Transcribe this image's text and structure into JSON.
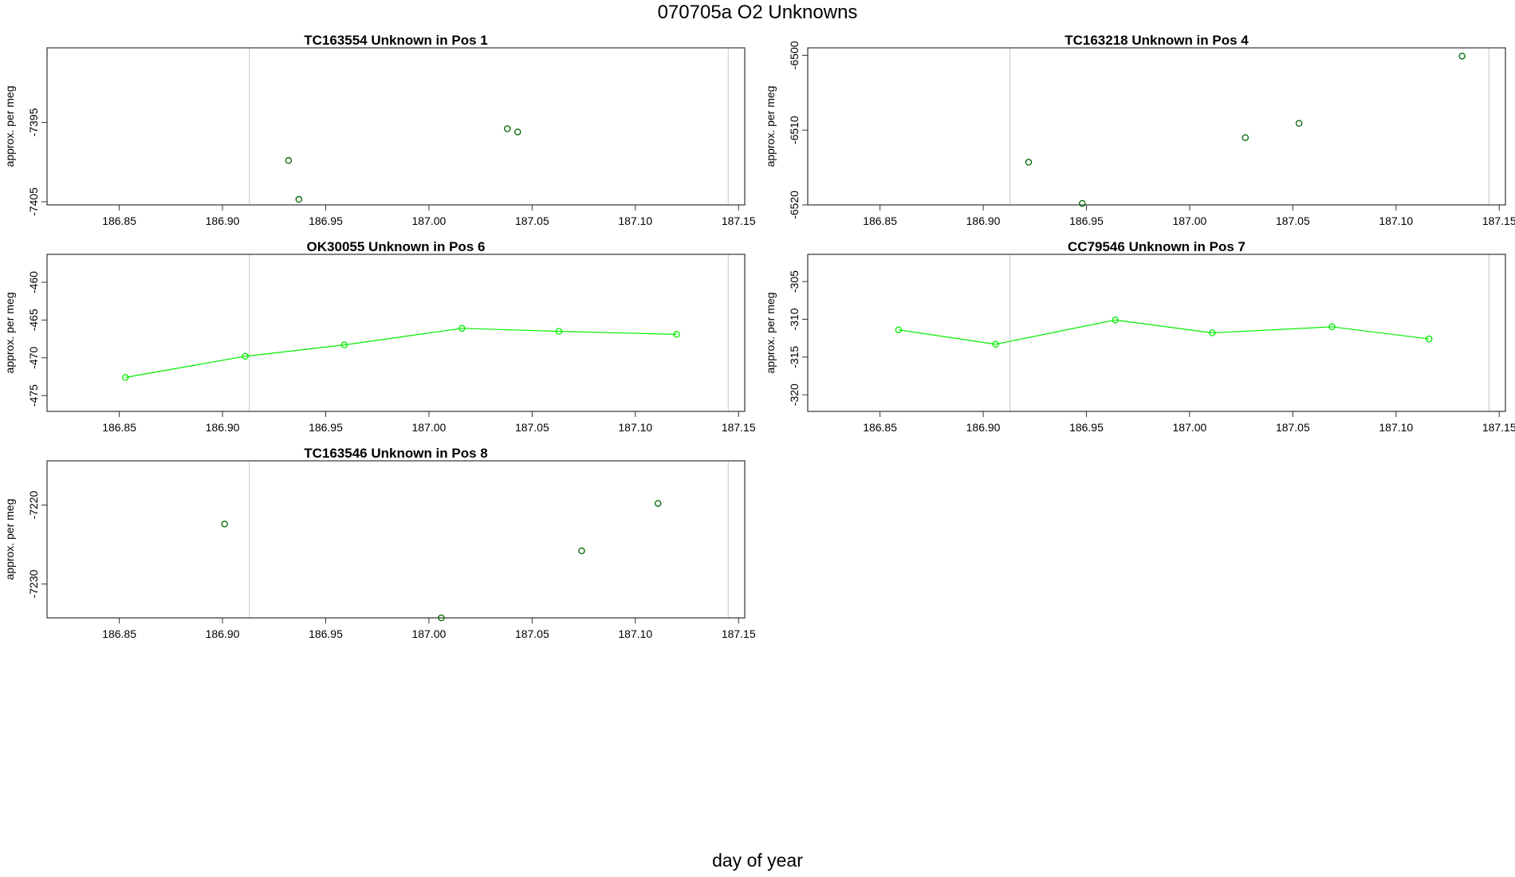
{
  "title": "070705a  O2 Unknowns",
  "x_label": "day of year",
  "colors": {
    "points": "#006400",
    "line": "#00ee00",
    "marker": "#cccccc",
    "frame": "#333333"
  },
  "chart_data": [
    {
      "type": "scatter",
      "title": "TC163554    Unknown in Pos 1",
      "xlabel": "day of year",
      "ylabel": "approx. per meg",
      "xlim": [
        186.815,
        187.153
      ],
      "ylim": [
        -7405.4,
        -7385.6
      ],
      "xticks": [
        186.85,
        186.9,
        186.95,
        187.0,
        187.05,
        187.1,
        187.15
      ],
      "xtick_labels": [
        "186.85",
        "186.90",
        "186.95",
        "187.00",
        "187.05",
        "187.10",
        "187.15"
      ],
      "yticks": [
        -7395,
        -7405
      ],
      "ytick_labels": [
        "-7395",
        "-7405"
      ],
      "ref_lines": [
        186.913,
        187.145
      ],
      "connect": false,
      "x": [
        186.932,
        186.937,
        187.038,
        187.043
      ],
      "y": [
        -7399.8,
        -7404.7,
        -7395.8,
        -7396.2
      ]
    },
    {
      "type": "scatter",
      "title": "TC163218    Unknown in Pos 4",
      "xlabel": "day of year",
      "ylabel": "approx. per meg",
      "xlim": [
        186.815,
        187.153
      ],
      "ylim": [
        -6520.0,
        -6499.0
      ],
      "xticks": [
        186.85,
        186.9,
        186.95,
        187.0,
        187.05,
        187.1,
        187.15
      ],
      "xtick_labels": [
        "186.85",
        "186.90",
        "186.95",
        "187.00",
        "187.05",
        "187.10",
        "187.15"
      ],
      "yticks": [
        -6500,
        -6510,
        -6520
      ],
      "ytick_labels": [
        "-6500",
        "-6510",
        "-6520"
      ],
      "ref_lines": [
        186.913,
        187.145
      ],
      "connect": false,
      "x": [
        186.922,
        186.948,
        187.027,
        187.053,
        187.132
      ],
      "y": [
        -6514.3,
        -6519.8,
        -6511.0,
        -6509.1,
        -6500.1
      ]
    },
    {
      "type": "line",
      "title": "OK30055    Unknown in Pos 6",
      "xlabel": "day of year",
      "ylabel": "approx. per meg",
      "xlim": [
        186.815,
        187.153
      ],
      "ylim": [
        -477.1,
        -456.3
      ],
      "xticks": [
        186.85,
        186.9,
        186.95,
        187.0,
        187.05,
        187.1,
        187.15
      ],
      "xtick_labels": [
        "186.85",
        "186.90",
        "186.95",
        "187.00",
        "187.05",
        "187.10",
        "187.15"
      ],
      "yticks": [
        -460,
        -465,
        -470,
        -475
      ],
      "ytick_labels": [
        "-460",
        "-465",
        "-470",
        "-475"
      ],
      "ref_lines": [
        186.913,
        187.145
      ],
      "connect": true,
      "x": [
        186.853,
        186.911,
        186.959,
        187.016,
        187.063,
        187.12
      ],
      "y": [
        -472.6,
        -469.8,
        -468.3,
        -466.1,
        -466.5,
        -466.9
      ]
    },
    {
      "type": "line",
      "title": "CC79546    Unknown in Pos 7",
      "xlabel": "day of year",
      "ylabel": "approx. per meg",
      "xlim": [
        186.815,
        187.153
      ],
      "ylim": [
        -322.2,
        -301.4
      ],
      "xticks": [
        186.85,
        186.9,
        186.95,
        187.0,
        187.05,
        187.1,
        187.15
      ],
      "xtick_labels": [
        "186.85",
        "186.90",
        "186.95",
        "187.00",
        "187.05",
        "187.10",
        "187.15"
      ],
      "yticks": [
        -305,
        -310,
        -315,
        -320
      ],
      "ytick_labels": [
        "-305",
        "-310",
        "-315",
        "-320"
      ],
      "ref_lines": [
        186.913,
        187.145
      ],
      "connect": true,
      "x": [
        186.859,
        186.906,
        186.964,
        187.011,
        187.069,
        187.116
      ],
      "y": [
        -311.4,
        -313.3,
        -310.1,
        -311.8,
        -311.0,
        -312.6
      ]
    },
    {
      "type": "scatter",
      "title": "TC163546    Unknown in Pos 8",
      "xlabel": "day of year",
      "ylabel": "approx. per meg",
      "xlim": [
        186.815,
        187.153
      ],
      "ylim": [
        -7234.3,
        -7214.4
      ],
      "xticks": [
        186.85,
        186.9,
        186.95,
        187.0,
        187.05,
        187.1,
        187.15
      ],
      "xtick_labels": [
        "186.85",
        "186.90",
        "186.95",
        "187.00",
        "187.05",
        "187.10",
        "187.15"
      ],
      "yticks": [
        -7220,
        -7230
      ],
      "ytick_labels": [
        "-7220",
        "-7230"
      ],
      "ref_lines": [
        186.913,
        187.145
      ],
      "connect": false,
      "x": [
        186.901,
        187.006,
        187.074,
        187.111
      ],
      "y": [
        -7222.4,
        -7234.3,
        -7225.8,
        -7219.8
      ]
    }
  ]
}
